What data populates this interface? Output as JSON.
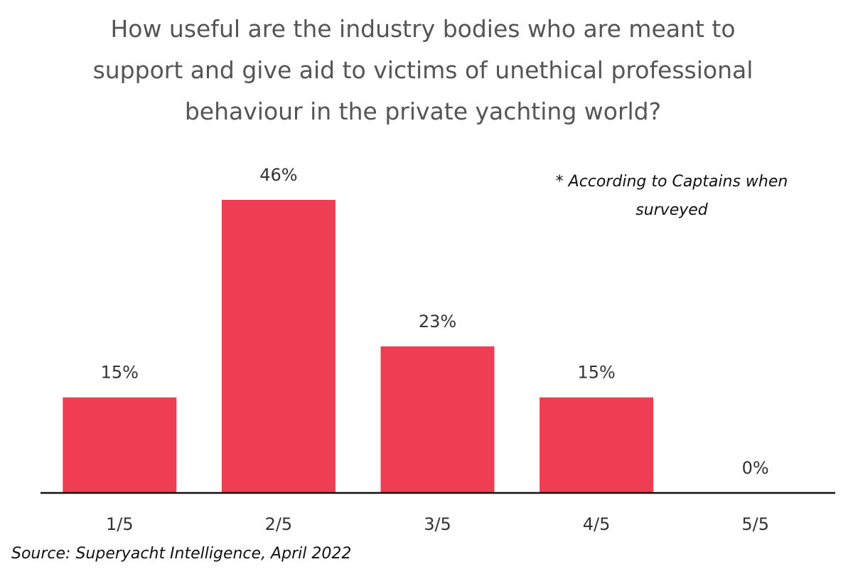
{
  "chart_data": {
    "type": "bar",
    "title": "How useful are the industry bodies who are meant to support and give aid to victims of unethical professional behaviour in the private yachting world?",
    "annotation": "* According to Captains when surveyed",
    "source": "Source: Superyacht Intelligence, April 2022",
    "categories": [
      "1/5",
      "2/5",
      "3/5",
      "4/5",
      "5/5"
    ],
    "values": [
      15,
      46,
      23,
      15,
      0
    ],
    "value_labels": [
      "15%",
      "46%",
      "23%",
      "15%",
      "0%"
    ],
    "color": "#ef3e54"
  }
}
